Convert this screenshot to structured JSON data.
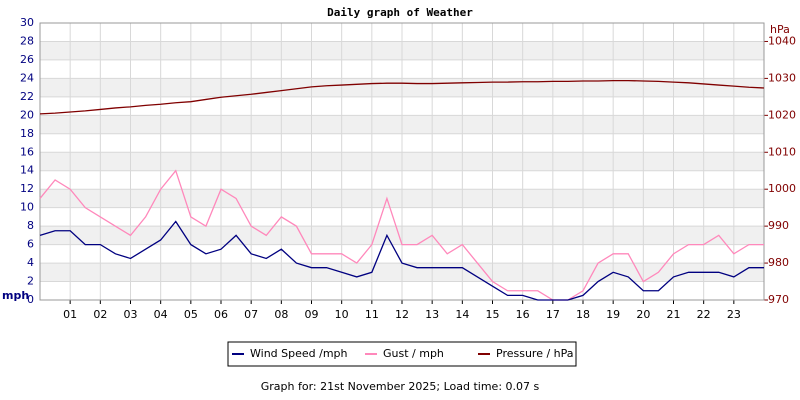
{
  "chart_data": {
    "type": "line",
    "title": "Daily graph of Weather",
    "y_label": "mph",
    "y2_label": "hPa",
    "footer": "Graph for: 21st November 2025; Load time: 0.07 s",
    "xlim": [
      0,
      24
    ],
    "xticks": [
      {
        "value": 1,
        "label": "01"
      },
      {
        "value": 2,
        "label": "02"
      },
      {
        "value": 3,
        "label": "03"
      },
      {
        "value": 4,
        "label": "04"
      },
      {
        "value": 5,
        "label": "05"
      },
      {
        "value": 6,
        "label": "06"
      },
      {
        "value": 7,
        "label": "07"
      },
      {
        "value": 8,
        "label": "08"
      },
      {
        "value": 9,
        "label": "09"
      },
      {
        "value": 10,
        "label": "10"
      },
      {
        "value": 11,
        "label": "11"
      },
      {
        "value": 12,
        "label": "12"
      },
      {
        "value": 13,
        "label": "13"
      },
      {
        "value": 14,
        "label": "14"
      },
      {
        "value": 15,
        "label": "15"
      },
      {
        "value": 16,
        "label": "16"
      },
      {
        "value": 17,
        "label": "17"
      },
      {
        "value": 18,
        "label": "18"
      },
      {
        "value": 19,
        "label": "19"
      },
      {
        "value": 20,
        "label": "20"
      },
      {
        "value": 21,
        "label": "21"
      },
      {
        "value": 22,
        "label": "22"
      },
      {
        "value": 23,
        "label": "23"
      }
    ],
    "ylim": [
      0,
      30
    ],
    "yticks": [
      0,
      2,
      4,
      6,
      8,
      10,
      12,
      14,
      16,
      18,
      20,
      22,
      24,
      26,
      28,
      30
    ],
    "y2lim": [
      970,
      1045
    ],
    "y2ticks": [
      970,
      980,
      990,
      1000,
      1010,
      1020,
      1030,
      1040
    ],
    "grid": true,
    "x": [
      0,
      0.5,
      1,
      1.5,
      2,
      2.5,
      3,
      3.5,
      4,
      4.5,
      5,
      5.5,
      6,
      6.5,
      7,
      7.5,
      8,
      8.5,
      9,
      9.5,
      10,
      10.5,
      11,
      11.5,
      12,
      12.5,
      13,
      13.5,
      14,
      14.5,
      15,
      15.5,
      16,
      16.5,
      17,
      17.5,
      18,
      18.5,
      19,
      19.5,
      20,
      20.5,
      21,
      21.5,
      22,
      22.5,
      23,
      23.5,
      24
    ],
    "series": [
      {
        "name": "Wind Speed /mph",
        "color": "#000080",
        "axis": "y",
        "values": [
          7,
          7.5,
          7.5,
          6,
          6,
          5,
          4.5,
          5.5,
          6.5,
          8.5,
          6,
          5,
          5.5,
          7,
          5,
          4.5,
          5.5,
          4,
          3.5,
          3.5,
          3,
          2.5,
          3,
          7,
          4,
          3.5,
          3.5,
          3.5,
          3.5,
          2.5,
          1.5,
          0.5,
          0.5,
          0,
          0,
          0,
          0.5,
          2,
          3,
          2.5,
          1,
          1,
          2.5,
          3,
          3,
          3,
          2.5,
          3.5,
          3.5
        ]
      },
      {
        "name": "Gust / mph",
        "color": "#ff88bb",
        "axis": "y",
        "values": [
          11,
          13,
          12,
          10,
          9,
          8,
          7,
          9,
          12,
          14,
          9,
          8,
          12,
          11,
          8,
          7,
          9,
          8,
          5,
          5,
          5,
          4,
          6,
          11,
          6,
          6,
          7,
          5,
          6,
          4,
          2,
          1,
          1,
          1,
          0,
          0,
          1,
          4,
          5,
          5,
          2,
          3,
          5,
          6,
          6,
          7,
          5,
          6,
          6
        ]
      },
      {
        "name": "Pressure / hPa",
        "color": "#800000",
        "axis": "y2",
        "values": [
          1020.4,
          1020.6,
          1020.9,
          1021.2,
          1021.6,
          1022,
          1022.3,
          1022.7,
          1023,
          1023.4,
          1023.7,
          1024.3,
          1024.9,
          1025.3,
          1025.7,
          1026.2,
          1026.7,
          1027.2,
          1027.7,
          1028,
          1028.2,
          1028.4,
          1028.6,
          1028.7,
          1028.7,
          1028.6,
          1028.6,
          1028.7,
          1028.8,
          1028.9,
          1029,
          1029,
          1029.1,
          1029.1,
          1029.2,
          1029.2,
          1029.3,
          1029.3,
          1029.4,
          1029.4,
          1029.3,
          1029.2,
          1029,
          1028.8,
          1028.5,
          1028.2,
          1027.9,
          1027.6,
          1027.4
        ]
      }
    ]
  }
}
